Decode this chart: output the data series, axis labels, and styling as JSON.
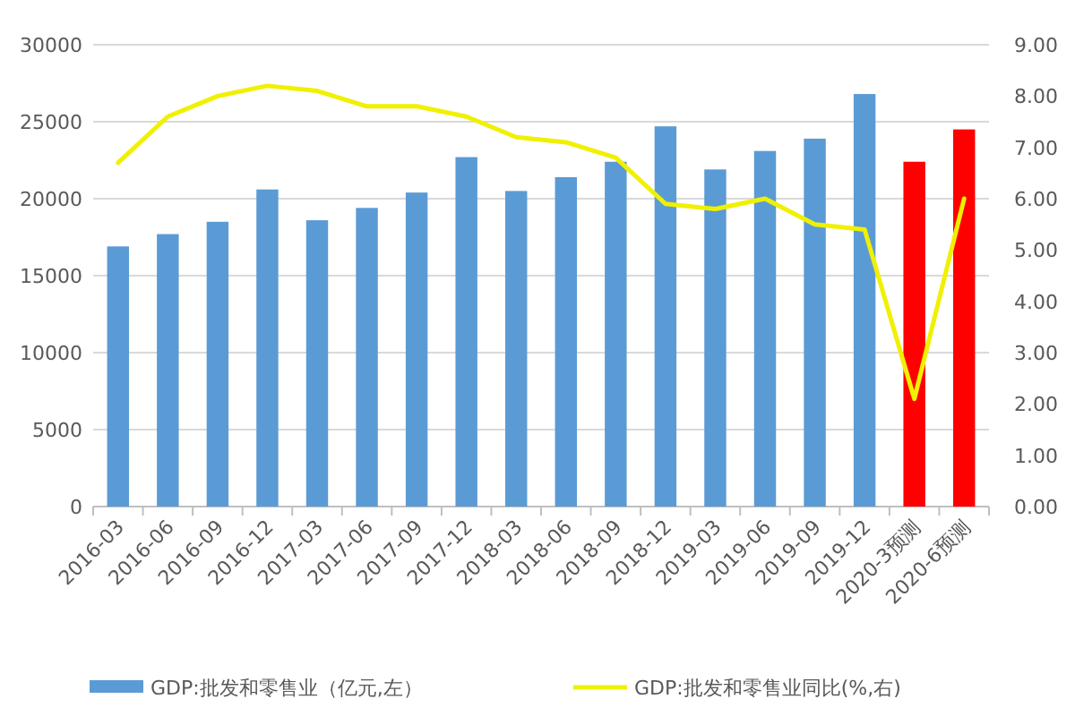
{
  "chart_data": {
    "type": "bar",
    "categories": [
      "2016-03",
      "2016-06",
      "2016-09",
      "2016-12",
      "2017-03",
      "2017-06",
      "2017-09",
      "2017-12",
      "2018-03",
      "2018-06",
      "2018-09",
      "2018-12",
      "2019-03",
      "2019-06",
      "2019-09",
      "2019-12",
      "2020-3预测",
      "2020-6预测"
    ],
    "series": [
      {
        "name": "GDP:批发和零售业（亿元,左）",
        "color": "#5b9bd5",
        "colors": [
          "#5b9bd5",
          "#5b9bd5",
          "#5b9bd5",
          "#5b9bd5",
          "#5b9bd5",
          "#5b9bd5",
          "#5b9bd5",
          "#5b9bd5",
          "#5b9bd5",
          "#5b9bd5",
          "#5b9bd5",
          "#5b9bd5",
          "#5b9bd5",
          "#5b9bd5",
          "#5b9bd5",
          "#5b9bd5",
          "#ff0000",
          "#ff0000"
        ],
        "values": [
          16900,
          17700,
          18500,
          20600,
          18600,
          19400,
          20400,
          22700,
          20500,
          21400,
          22400,
          24700,
          21900,
          23100,
          23900,
          26800,
          22400,
          24500
        ]
      },
      {
        "name": "GDP:批发和零售业同比(%,右)",
        "type": "line",
        "axis": "y2",
        "color": "#f0f000",
        "values": [
          6.7,
          7.6,
          8.0,
          8.2,
          8.1,
          7.8,
          7.8,
          7.6,
          7.2,
          7.1,
          6.8,
          5.9,
          5.8,
          6.0,
          5.5,
          5.4,
          2.1,
          6.0
        ]
      }
    ],
    "ylim": [
      0,
      30000
    ],
    "yticks": [
      0,
      5000,
      10000,
      15000,
      20000,
      25000,
      30000
    ],
    "y2lim": [
      0,
      9
    ],
    "y2ticks": [
      {
        "value": 0,
        "label": "0.00"
      },
      {
        "value": 1,
        "label": "1.00"
      },
      {
        "value": 2,
        "label": "2.00"
      },
      {
        "value": 3,
        "label": "3.00"
      },
      {
        "value": 4,
        "label": "4.00"
      },
      {
        "value": 5,
        "label": "5.00"
      },
      {
        "value": 6,
        "label": "6.00"
      },
      {
        "value": 7,
        "label": "7.00"
      },
      {
        "value": 8,
        "label": "8.00"
      },
      {
        "value": 9,
        "label": "9.00"
      }
    ],
    "grid": "y",
    "legend": "bottom"
  }
}
